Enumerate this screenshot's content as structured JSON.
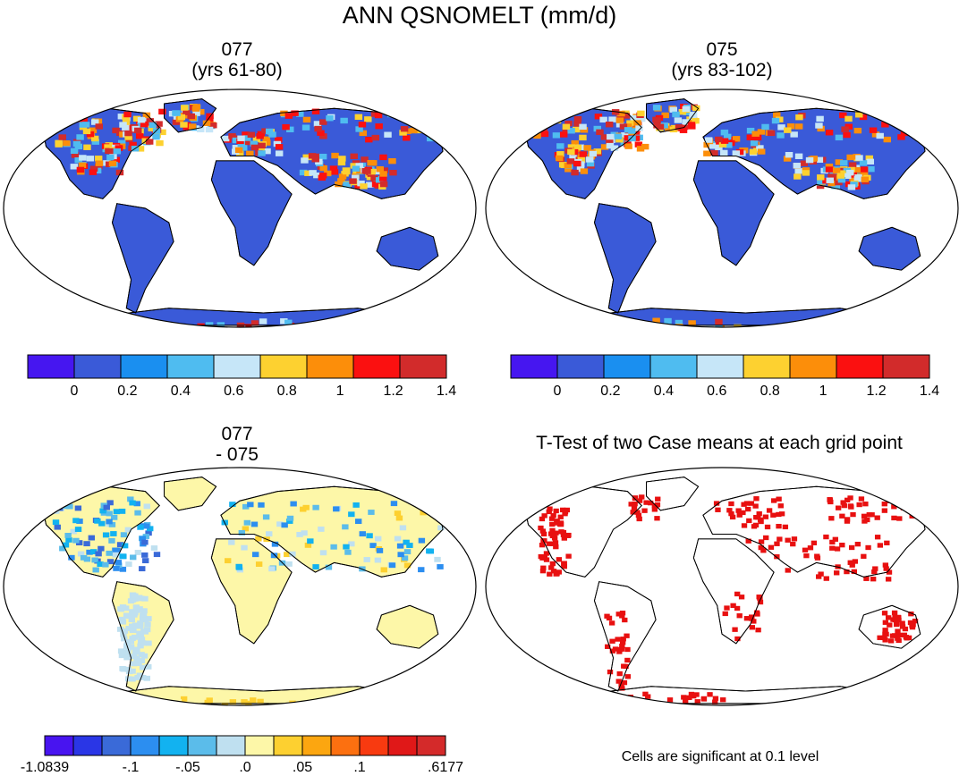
{
  "chart_data": [
    {
      "type": "heatmap",
      "title": "ANN QSNOMELT (mm/d)",
      "panels": [
        {
          "id": "p1",
          "title_lines": [
            "077",
            "(yrs 61-80)"
          ],
          "colorbar": {
            "colors": [
              "#4616f0",
              "#3a5ad8",
              "#1a8ff0",
              "#4fbcf0",
              "#c6e6f8",
              "#fdd130",
              "#fc8e0a",
              "#fb1010",
              "#d22b2b"
            ],
            "labels": [
              "0",
              "0.2",
              "0.4",
              "0.6",
              "0.8",
              "1",
              "1.2",
              "1.4"
            ]
          }
        },
        {
          "id": "p2",
          "title_lines": [
            "075",
            "(yrs 83-102)"
          ],
          "colorbar": {
            "colors": [
              "#4616f0",
              "#3a5ad8",
              "#1a8ff0",
              "#4fbcf0",
              "#c6e6f8",
              "#fdd130",
              "#fc8e0a",
              "#fb1010",
              "#d22b2b"
            ],
            "labels": [
              "0",
              "0.2",
              "0.4",
              "0.6",
              "0.8",
              "1",
              "1.2",
              "1.4"
            ]
          }
        },
        {
          "id": "p3",
          "title_lines": [
            "077",
            "- 075"
          ],
          "colorbar": {
            "colors": [
              "#4814f0",
              "#2a36e6",
              "#3a6ad8",
              "#2c8ef0",
              "#12b2f0",
              "#5bbcea",
              "#bfe0f0",
              "#fdf7a8",
              "#fdd030",
              "#fca610",
              "#fc7010",
              "#f83a10",
              "#e01818",
              "#d42a2a"
            ],
            "labels": [
              "-1.0839",
              "-.1",
              "-.05",
              ".0",
              ".05",
              ".1",
              ".6177"
            ]
          }
        },
        {
          "id": "p4",
          "title_lines": [
            "T-Test of two Case means at each grid point"
          ],
          "note": "Cells are significant at 0.1 level"
        }
      ]
    }
  ],
  "colors": {
    "land_low": "#3a5ad8",
    "diff_land": "#fdf7a8",
    "sig_red": "#e81010",
    "coast": "#000000"
  }
}
